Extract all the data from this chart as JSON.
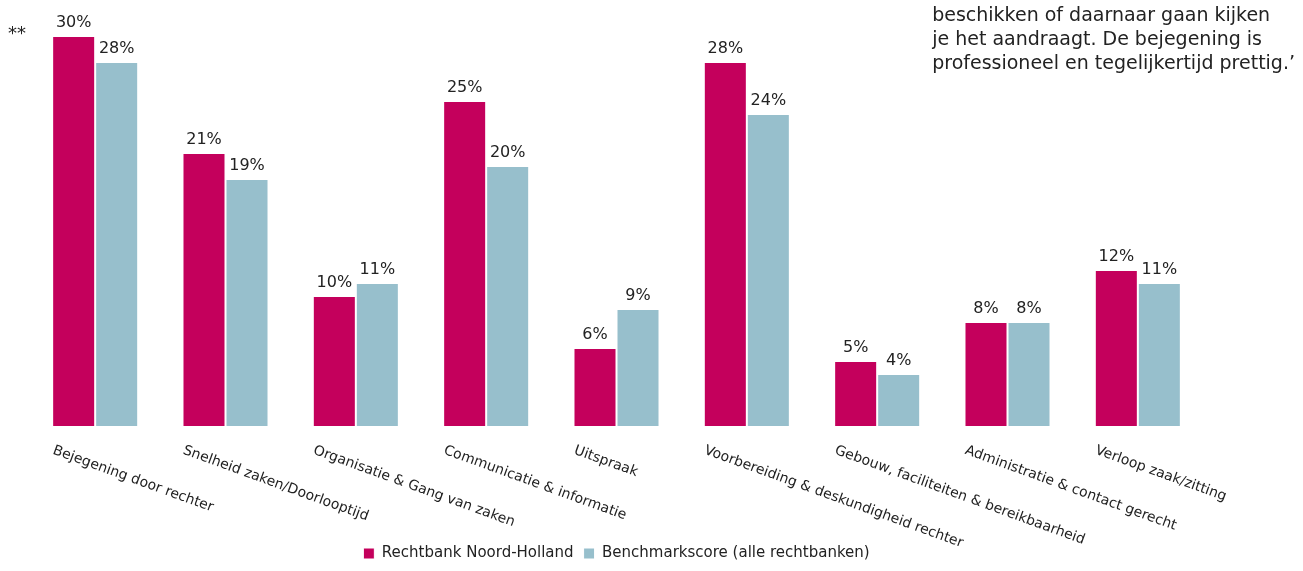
{
  "chart_data": {
    "type": "bar",
    "categories": [
      "Bejegening door rechter",
      "Snelheid zaken/Doorlooptijd",
      "Organisatie & Gang van zaken",
      "Communicatie & informatie",
      "Uitspraak",
      "Voorbereiding & deskundigheid rechter",
      "Gebouw, faciliteiten & bereikbaarheid",
      "Administratie & contact gerecht",
      "Verloop zaak/zitting"
    ],
    "series": [
      {
        "name": "Rechtbank Noord-Holland",
        "color": "#c4005c",
        "values": [
          30,
          21,
          10,
          25,
          6,
          28,
          5,
          8,
          12
        ],
        "value_labels": [
          "30%",
          "21%",
          "10%",
          "25%",
          "6%",
          "28%",
          "5%",
          "8%",
          "12%"
        ]
      },
      {
        "name": "Benchmarkscore (alle rechtbanken)",
        "color": "#97bfcc",
        "values": [
          28,
          19,
          11,
          20,
          9,
          24,
          4,
          8,
          11
        ],
        "value_labels": [
          "28%",
          "19%",
          "11%",
          "20%",
          "9%",
          "24%",
          "4%",
          "8%",
          "11%"
        ]
      }
    ],
    "legend": "bottom",
    "annotations": [
      "**",
      "beschikken of daarnaar gaan kijken\nje het aandraagt. De bejegening is\nprofessioneel en tegelijkertijd prettig.’"
    ]
  }
}
